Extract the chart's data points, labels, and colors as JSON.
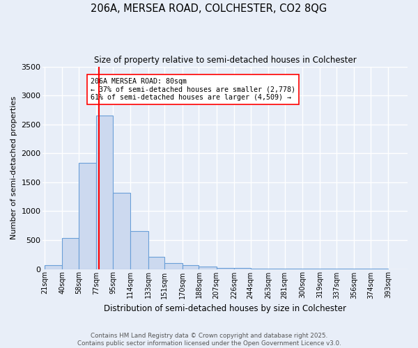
{
  "title_line1": "206A, MERSEA ROAD, COLCHESTER, CO2 8QG",
  "title_line2": "Size of property relative to semi-detached houses in Colchester",
  "xlabel": "Distribution of semi-detached houses by size in Colchester",
  "ylabel": "Number of semi-detached properties",
  "bin_labels": [
    "21sqm",
    "40sqm",
    "58sqm",
    "77sqm",
    "95sqm",
    "114sqm",
    "133sqm",
    "151sqm",
    "170sqm",
    "188sqm",
    "207sqm",
    "226sqm",
    "244sqm",
    "263sqm",
    "281sqm",
    "300sqm",
    "319sqm",
    "337sqm",
    "356sqm",
    "374sqm",
    "393sqm"
  ],
  "bin_edges": [
    21,
    40,
    58,
    77,
    95,
    114,
    133,
    151,
    170,
    188,
    207,
    226,
    244,
    263,
    281,
    300,
    319,
    337,
    356,
    374,
    393
  ],
  "values": [
    65,
    530,
    1840,
    2650,
    1320,
    650,
    210,
    105,
    65,
    40,
    20,
    15,
    10,
    5,
    3,
    2,
    2,
    1,
    1,
    1
  ],
  "bar_color": "#ccd9ef",
  "bar_edge_color": "#6a9fd8",
  "property_value": 80,
  "red_line_x": 80,
  "annotation_text": "206A MERSEA ROAD: 80sqm\n← 37% of semi-detached houses are smaller (2,778)\n61% of semi-detached houses are larger (4,509) →",
  "ylim": [
    0,
    3500
  ],
  "background_color": "#e8eef8",
  "grid_color": "#ffffff",
  "footer": "Contains HM Land Registry data © Crown copyright and database right 2025.\nContains public sector information licensed under the Open Government Licence v3.0."
}
